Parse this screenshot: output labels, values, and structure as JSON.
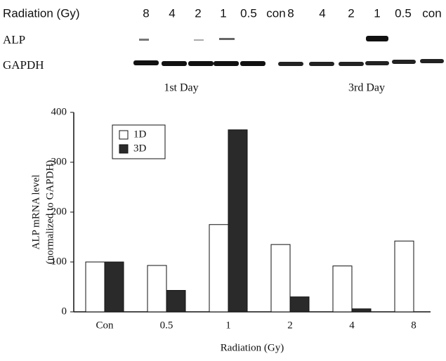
{
  "blot": {
    "row_title": "Radiation (Gy)",
    "lanes": [
      "8",
      "4",
      "2",
      "1",
      "0.5",
      "con",
      "8",
      "4",
      "2",
      "1",
      "0.5",
      "con"
    ],
    "rows": [
      "ALP",
      "GAPDH"
    ],
    "groups": [
      "1st Day",
      "3rd Day"
    ]
  },
  "chart_data": {
    "type": "bar",
    "xlabel": "Radiation (Gy)",
    "ylabel": [
      "ALP mRNA level",
      "(normalized to GAPDH)"
    ],
    "categories": [
      "Con",
      "0.5",
      "1",
      "2",
      "4",
      "8"
    ],
    "series": [
      {
        "name": "1D",
        "color": "#ffffff",
        "values": [
          100,
          93,
          175,
          135,
          92,
          142
        ]
      },
      {
        "name": "3D",
        "color": "#2a2a2a",
        "values": [
          100,
          43,
          365,
          30,
          6,
          0
        ]
      }
    ],
    "ylim": [
      0,
      400
    ],
    "yticks": [
      0,
      100,
      200,
      300,
      400
    ],
    "grid": false,
    "legend": "upper left"
  }
}
